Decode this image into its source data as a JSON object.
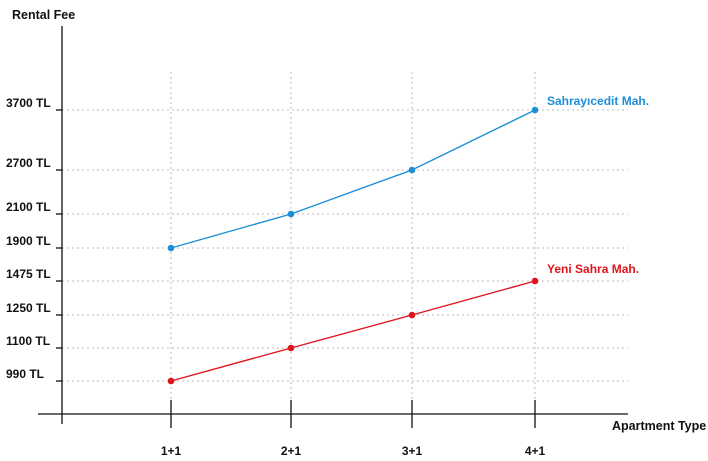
{
  "chart_data": {
    "type": "line",
    "categories": [
      "1+1",
      "2+1",
      "3+1",
      "4+1"
    ],
    "series": [
      {
        "name": "Sahrayıcedit Mah.",
        "values": [
          1900,
          2100,
          2700,
          3700
        ],
        "color": "#1e8fd6"
      },
      {
        "name": "Yeni Sahra Mah.",
        "values": [
          990,
          1100,
          1250,
          1475
        ],
        "color": "#e0141c"
      }
    ],
    "y_ticks": [
      {
        "value": 990,
        "label": "990 TL"
      },
      {
        "value": 1100,
        "label": "1100 TL"
      },
      {
        "value": 1250,
        "label": "1250 TL"
      },
      {
        "value": 1475,
        "label": "1475 TL"
      },
      {
        "value": 1900,
        "label": "1900 TL"
      },
      {
        "value": 2100,
        "label": "2100 TL"
      },
      {
        "value": 2700,
        "label": "2700 TL"
      },
      {
        "value": 3700,
        "label": "3700 TL"
      }
    ],
    "ylabel": "Rental Fee",
    "xlabel": "Apartment Type",
    "grid": true,
    "y_scale": "categorical-ticks"
  }
}
